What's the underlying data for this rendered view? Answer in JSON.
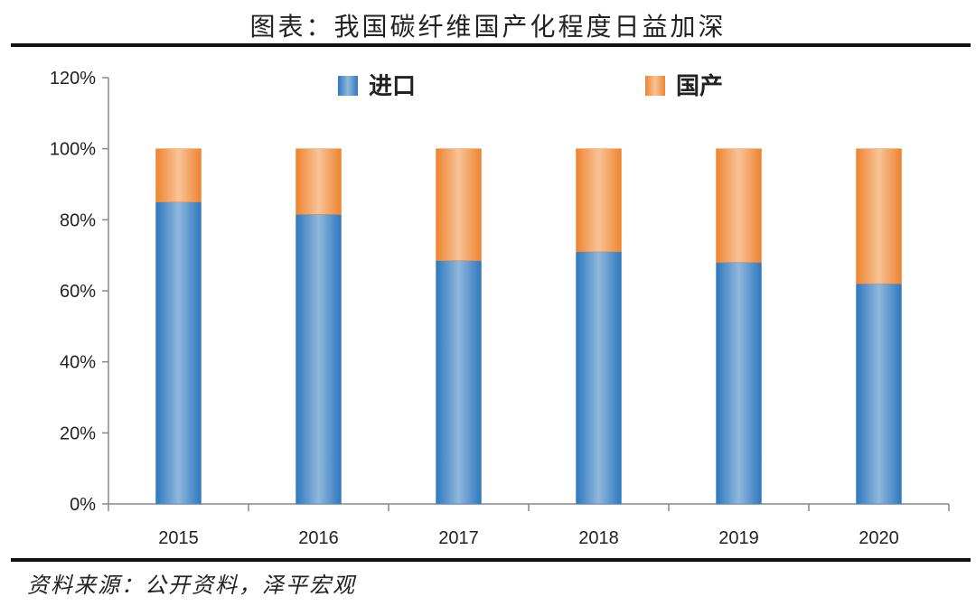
{
  "title": "图表：我国碳纤维国产化程度日益加深",
  "source": "资料来源：公开资料，泽平宏观",
  "chart_data": {
    "type": "bar",
    "stacked": true,
    "categories": [
      "2015",
      "2016",
      "2017",
      "2018",
      "2019",
      "2020"
    ],
    "series": [
      {
        "name": "进口",
        "values": [
          85,
          81.5,
          68.5,
          71,
          68,
          62
        ],
        "color": "#3d86c9"
      },
      {
        "name": "国产",
        "values": [
          15,
          18.5,
          31.5,
          29,
          32,
          38
        ],
        "color": "#f08a32"
      }
    ],
    "y_ticks": [
      "0%",
      "20%",
      "40%",
      "60%",
      "80%",
      "100%",
      "120%"
    ],
    "ylim": [
      0,
      120
    ],
    "legend_position": "top",
    "grid": false
  }
}
